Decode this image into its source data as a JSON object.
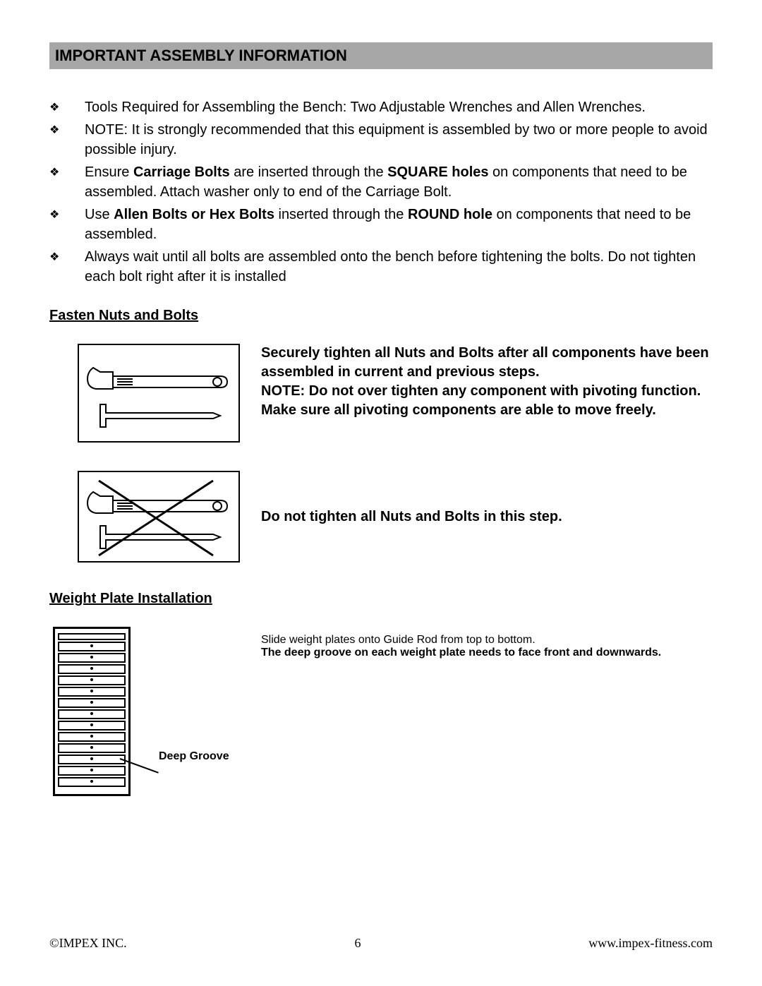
{
  "header": {
    "title": "IMPORTANT ASSEMBLY INFORMATION",
    "bg_color": "#a7a7a7"
  },
  "bullets": [
    {
      "html": "Tools Required for Assembling the Bench:  Two Adjustable Wrenches and Allen Wrenches."
    },
    {
      "html": "NOTE:  It is strongly recommended that this equipment is assembled by two or more people to avoid possible injury."
    },
    {
      "html": "Ensure <span class='b'>Carriage Bolts</span> are inserted through the <span class='b'>SQUARE holes</span> on components that need to be assembled. Attach washer only to end of the Carriage Bolt."
    },
    {
      "html": "Use <span class='b'>Allen Bolts or Hex Bolts</span> inserted through the <span class='b'>ROUND hole</span> on components that need to be assembled."
    },
    {
      "html": "Always wait until all bolts are assembled onto the bench before tightening the bolts. Do not tighten each bolt right after it is installed"
    }
  ],
  "fasten": {
    "title": "Fasten Nuts and Bolts",
    "block1_lines": [
      "Securely tighten all Nuts and Bolts after all components have been assembled in current and previous steps.",
      "NOTE: Do not over tighten any component with pivoting function.",
      "Make sure all pivoting components are able to move freely."
    ],
    "block2_text": "Do not tighten all Nuts and Bolts in this step."
  },
  "weight": {
    "title": "Weight Plate Installation",
    "line1": "Slide weight plates onto Guide Rod from top to bottom.",
    "line2": "The deep groove on each weight plate needs to face front and downwards.",
    "deep_label": "Deep Groove",
    "plate_count": 13
  },
  "footer": {
    "left": "©IMPEX INC.",
    "page": "6",
    "right": "www.impex-fitness.com"
  },
  "style": {
    "body_fontsize": 20,
    "text_color": "#000000",
    "page_bg": "#ffffff"
  }
}
